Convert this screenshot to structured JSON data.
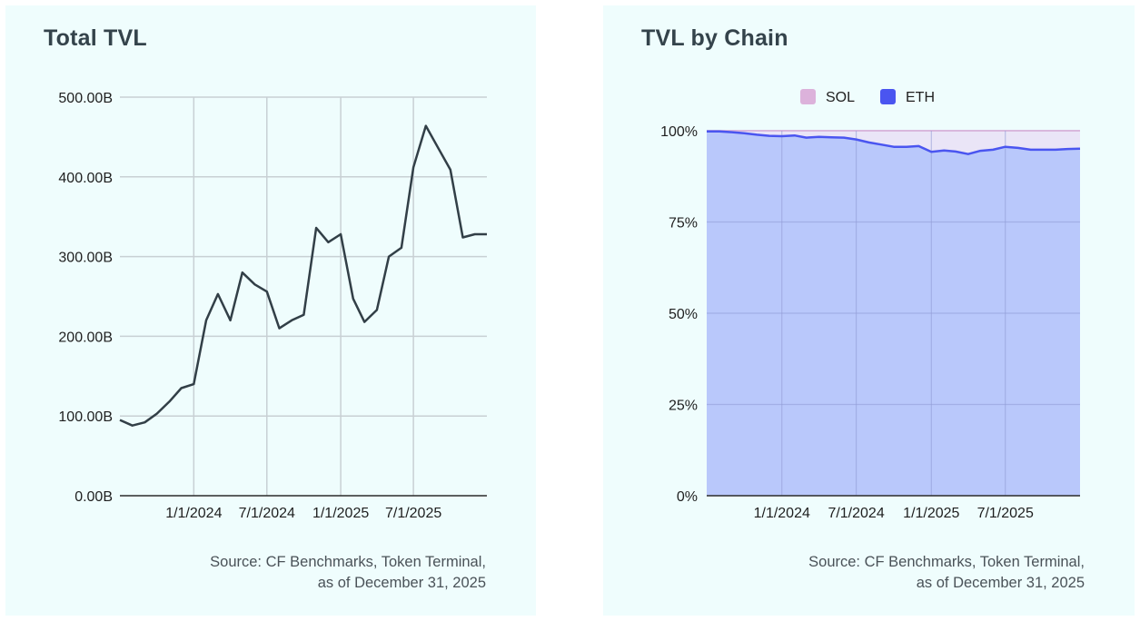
{
  "panels": {
    "left": {
      "title": "Total TVL",
      "source_line1": "Source: CF Benchmarks, Token Terminal,",
      "source_line2": "as of December 31, 2025"
    },
    "right": {
      "title": "TVL by Chain",
      "source_line1": "Source: CF Benchmarks, Token Terminal,",
      "source_line2": "as of December 31, 2025"
    }
  },
  "colors": {
    "line": "#323f47",
    "grid": "#c8d0d4",
    "axis": "#2b2b2b",
    "eth_line": "#4a55f0",
    "eth_fill": "#b9c8fb",
    "sol_fill": "#eae5f7",
    "sol_border": "#d9b8dd",
    "sol_legend": "#dcb2db",
    "eth_legend": "#4a55f0"
  },
  "chart_data": [
    {
      "type": "line",
      "title": "Total TVL",
      "xlabel": "",
      "ylabel": "",
      "ylim": [
        0,
        500
      ],
      "yticks": [
        0,
        100,
        200,
        300,
        400,
        500
      ],
      "ytick_labels": [
        "0.00B",
        "100.00B",
        "200.00B",
        "300.00B",
        "400.00B",
        "500.00B"
      ],
      "xlim": [
        "2023-07-01",
        "2025-12-31"
      ],
      "xticks": [
        "2024-01-01",
        "2024-07-01",
        "2025-01-01",
        "2025-07-01"
      ],
      "xtick_labels": [
        "1/1/2024",
        "7/1/2024",
        "1/1/2025",
        "7/1/2025"
      ],
      "grid": true,
      "legend": "none",
      "unit": "B",
      "series": [
        {
          "x": [
            "2023-07-01",
            "2023-08-01",
            "2023-09-01",
            "2023-10-01",
            "2023-11-01",
            "2023-12-01",
            "2024-01-01",
            "2024-02-01",
            "2024-03-01",
            "2024-04-01",
            "2024-05-01",
            "2024-06-01",
            "2024-07-01",
            "2024-08-01",
            "2024-09-01",
            "2024-10-01",
            "2024-11-01",
            "2024-12-01",
            "2025-01-01",
            "2025-02-01",
            "2025-03-01",
            "2025-04-01",
            "2025-05-01",
            "2025-06-01",
            "2025-07-01",
            "2025-08-01",
            "2025-09-01",
            "2025-10-01",
            "2025-11-01",
            "2025-12-01",
            "2025-12-31"
          ],
          "values": [
            95,
            88,
            92,
            103,
            118,
            135,
            140,
            220,
            253,
            220,
            280,
            265,
            256,
            210,
            220,
            227,
            336,
            318,
            328,
            247,
            218,
            233,
            300,
            311,
            412,
            464,
            436,
            409,
            324,
            328,
            328
          ]
        }
      ]
    },
    {
      "type": "area",
      "title": "TVL by Chain",
      "xlabel": "",
      "ylabel": "",
      "stacked": true,
      "ylim": [
        0,
        100
      ],
      "yticks": [
        0,
        25,
        50,
        75,
        100
      ],
      "ytick_labels": [
        "0%",
        "25%",
        "50%",
        "75%",
        "100%"
      ],
      "xlim": [
        "2023-07-01",
        "2025-12-31"
      ],
      "xticks": [
        "2024-01-01",
        "2024-07-01",
        "2025-01-01",
        "2025-07-01"
      ],
      "xtick_labels": [
        "1/1/2024",
        "7/1/2024",
        "1/1/2025",
        "7/1/2025"
      ],
      "grid": true,
      "legend": "top",
      "legend_labels": [
        "SOL",
        "ETH"
      ],
      "x": [
        "2023-07-01",
        "2023-08-01",
        "2023-09-01",
        "2023-10-01",
        "2023-11-01",
        "2023-12-01",
        "2024-01-01",
        "2024-02-01",
        "2024-03-01",
        "2024-04-01",
        "2024-05-01",
        "2024-06-01",
        "2024-07-01",
        "2024-08-01",
        "2024-09-01",
        "2024-10-01",
        "2024-11-01",
        "2024-12-01",
        "2025-01-01",
        "2025-02-01",
        "2025-03-01",
        "2025-04-01",
        "2025-05-01",
        "2025-06-01",
        "2025-07-01",
        "2025-08-01",
        "2025-09-01",
        "2025-10-01",
        "2025-11-01",
        "2025-12-01",
        "2025-12-31"
      ],
      "series": [
        {
          "name": "ETH",
          "values": [
            99.8,
            99.8,
            99.6,
            99.3,
            98.9,
            98.6,
            98.5,
            98.7,
            98.1,
            98.3,
            98.2,
            98.1,
            97.6,
            96.8,
            96.2,
            95.6,
            95.6,
            95.8,
            94.2,
            94.6,
            94.3,
            93.6,
            94.5,
            94.8,
            95.6,
            95.3,
            94.8,
            94.8,
            94.8,
            95.0,
            95.1
          ]
        },
        {
          "name": "SOL",
          "values": [
            0.2,
            0.2,
            0.4,
            0.7,
            1.1,
            1.4,
            1.5,
            1.3,
            1.9,
            1.7,
            1.8,
            1.9,
            2.4,
            3.2,
            3.8,
            4.4,
            4.4,
            4.2,
            5.8,
            5.4,
            5.7,
            6.4,
            5.5,
            5.2,
            4.4,
            4.7,
            5.2,
            5.2,
            5.2,
            5.0,
            4.9
          ]
        }
      ]
    }
  ]
}
